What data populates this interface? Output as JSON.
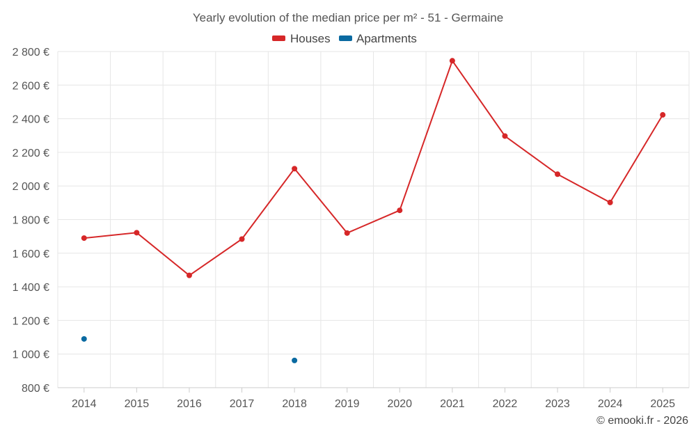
{
  "chart_data": {
    "type": "line",
    "title": "Yearly evolution of the median price per m² - 51 - Germaine",
    "categories": [
      "2014",
      "2015",
      "2016",
      "2017",
      "2018",
      "2019",
      "2020",
      "2021",
      "2022",
      "2023",
      "2024",
      "2025"
    ],
    "series": [
      {
        "name": "Houses",
        "color": "#d62728",
        "values": [
          1690,
          1722,
          1468,
          1684,
          2103,
          1720,
          1855,
          2745,
          2297,
          2070,
          1902,
          2423
        ]
      },
      {
        "name": "Apartments",
        "color": "#0a6aa1",
        "values": [
          1090,
          null,
          null,
          null,
          962,
          null,
          null,
          null,
          null,
          null,
          null,
          null
        ]
      }
    ],
    "ylim": [
      800,
      2800
    ],
    "yticks": [
      800,
      1000,
      1200,
      1400,
      1600,
      1800,
      2000,
      2200,
      2400,
      2600,
      2800
    ],
    "ytick_labels": [
      "800 €",
      "1 000 €",
      "1 200 €",
      "1 400 €",
      "1 600 €",
      "1 800 €",
      "2 000 €",
      "2 200 €",
      "2 400 €",
      "2 600 €",
      "2 800 €"
    ],
    "xlabel": "",
    "ylabel": "",
    "legend": "top-center",
    "grid": true
  },
  "credit": "© emooki.fr - 2026"
}
